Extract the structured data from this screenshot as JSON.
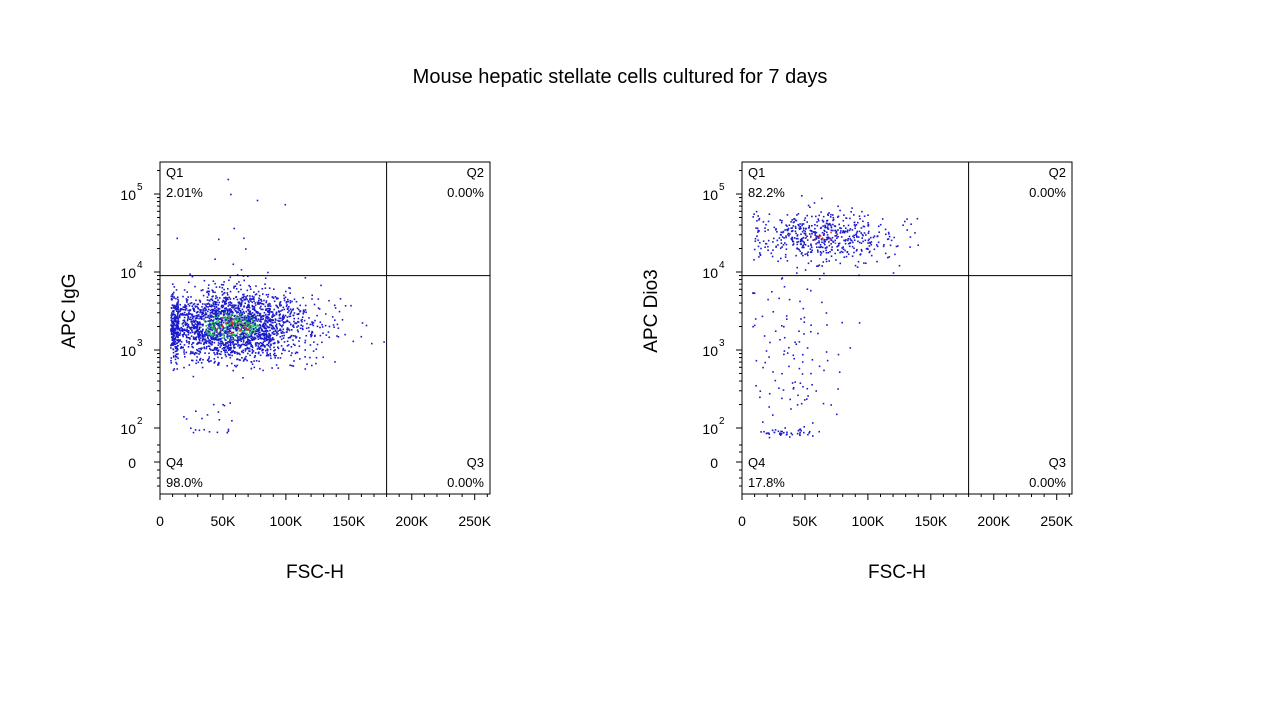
{
  "title": "Mouse hepatic stellate cells cultured for 7 days",
  "colors": {
    "dot_primary": "#1a1acc",
    "dot_dense": "#22bb55",
    "dot_hot": "#dd3322",
    "axis": "#000000"
  },
  "chart_data": [
    {
      "type": "scatter",
      "xlabel": "FSC-H",
      "ylabel": "APC IgG",
      "x_ticks": [
        "0",
        "50K",
        "100K",
        "150K",
        "200K",
        "250K"
      ],
      "x_tick_values": [
        0,
        50000,
        100000,
        150000,
        200000,
        250000
      ],
      "xlim": [
        0,
        262144
      ],
      "y_ticks": [
        {
          "base": "0",
          "exp": "",
          "value": 0
        },
        {
          "base": "10",
          "exp": "2",
          "value": 100
        },
        {
          "base": "10",
          "exp": "3",
          "value": 1000
        },
        {
          "base": "10",
          "exp": "4",
          "value": 10000
        },
        {
          "base": "10",
          "exp": "5",
          "value": 100000
        }
      ],
      "y_scale": "biexponential",
      "gate": {
        "x": 180000,
        "y": 9000
      },
      "quadrants": [
        {
          "name": "Q1",
          "percent": "2.01%",
          "position": "top-left"
        },
        {
          "name": "Q2",
          "percent": "0.00%",
          "position": "top-right"
        },
        {
          "name": "Q3",
          "percent": "0.00%",
          "position": "bottom-right"
        },
        {
          "name": "Q4",
          "percent": "98.0%",
          "position": "bottom-left"
        }
      ],
      "populations": [
        {
          "x_center": 55000,
          "x_spread": 30000,
          "log_y_center": 3.32,
          "log_y_spread": 0.22,
          "count": 2600,
          "region": "main"
        },
        {
          "x_center": 40000,
          "x_spread": 15000,
          "log_y_center": 2.05,
          "log_y_spread": 0.18,
          "count": 22,
          "region": "low"
        },
        {
          "x_center": 50000,
          "x_spread": 18000,
          "log_y_center": 4.55,
          "log_y_spread": 0.45,
          "count": 12,
          "region": "high"
        }
      ]
    },
    {
      "type": "scatter",
      "xlabel": "FSC-H",
      "ylabel": "APC Dio3",
      "x_ticks": [
        "0",
        "50K",
        "100K",
        "150K",
        "200K",
        "250K"
      ],
      "x_tick_values": [
        0,
        50000,
        100000,
        150000,
        200000,
        250000
      ],
      "xlim": [
        0,
        262144
      ],
      "y_ticks": [
        {
          "base": "0",
          "exp": "",
          "value": 0
        },
        {
          "base": "10",
          "exp": "2",
          "value": 100
        },
        {
          "base": "10",
          "exp": "3",
          "value": 1000
        },
        {
          "base": "10",
          "exp": "4",
          "value": 10000
        },
        {
          "base": "10",
          "exp": "5",
          "value": 100000
        }
      ],
      "y_scale": "biexponential",
      "gate": {
        "x": 180000,
        "y": 9000
      },
      "quadrants": [
        {
          "name": "Q1",
          "percent": "82.2%",
          "position": "top-left"
        },
        {
          "name": "Q2",
          "percent": "0.00%",
          "position": "top-right"
        },
        {
          "name": "Q3",
          "percent": "0.00%",
          "position": "bottom-right"
        },
        {
          "name": "Q4",
          "percent": "17.8%",
          "position": "bottom-left"
        }
      ],
      "populations": [
        {
          "x_center": 65000,
          "x_spread": 28000,
          "log_y_center": 4.45,
          "log_y_spread": 0.16,
          "count": 560,
          "region": "high"
        },
        {
          "x_center": 42000,
          "x_spread": 20000,
          "log_y_center": 2.9,
          "log_y_spread": 0.55,
          "count": 110,
          "region": "mid"
        },
        {
          "x_center": 35000,
          "x_spread": 12000,
          "log_y_center": 1.75,
          "log_y_spread": 0.12,
          "count": 40,
          "region": "low"
        }
      ]
    }
  ]
}
